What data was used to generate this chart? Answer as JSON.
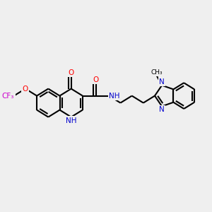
{
  "background_color": "#efefef",
  "bond_color": "#000000",
  "bond_width": 1.5,
  "atom_colors": {
    "O": "#ff0000",
    "N": "#0000cd",
    "NH": "#0000cd",
    "F": "#cc00cc",
    "C": "#000000"
  },
  "font_size": 7.5,
  "fig_size": [
    3.0,
    3.0
  ],
  "dpi": 100
}
